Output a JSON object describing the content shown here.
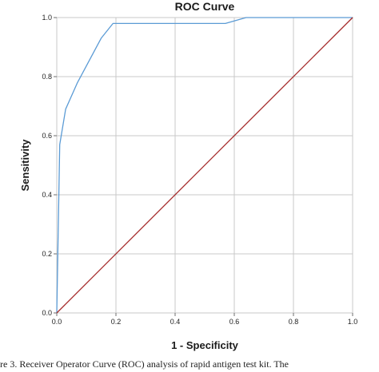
{
  "chart_data": {
    "type": "line",
    "title": "ROC Curve",
    "xlabel": "1 - Specificity",
    "ylabel": "Sensitivity",
    "xlim": [
      0.0,
      1.0
    ],
    "ylim": [
      0.0,
      1.0
    ],
    "x_ticks": [
      "0.0",
      "0.2",
      "0.4",
      "0.6",
      "0.8",
      "1.0"
    ],
    "y_ticks": [
      "0.0",
      "0.2",
      "0.4",
      "0.6",
      "0.8",
      "1.0"
    ],
    "grid": true,
    "series": [
      {
        "color": "#5b9bd5",
        "x": [
          0.0,
          0.01,
          0.03,
          0.07,
          0.15,
          0.19,
          0.57,
          0.64,
          1.0
        ],
        "y": [
          0.0,
          0.57,
          0.69,
          0.78,
          0.93,
          0.98,
          0.98,
          1.0,
          1.0
        ]
      },
      {
        "color": "#a52a2a",
        "x": [
          0.0,
          1.0
        ],
        "y": [
          0.0,
          1.0
        ]
      }
    ]
  },
  "caption": "re 3. Receiver Operator Curve (ROC) analysis of rapid antigen test kit. The"
}
